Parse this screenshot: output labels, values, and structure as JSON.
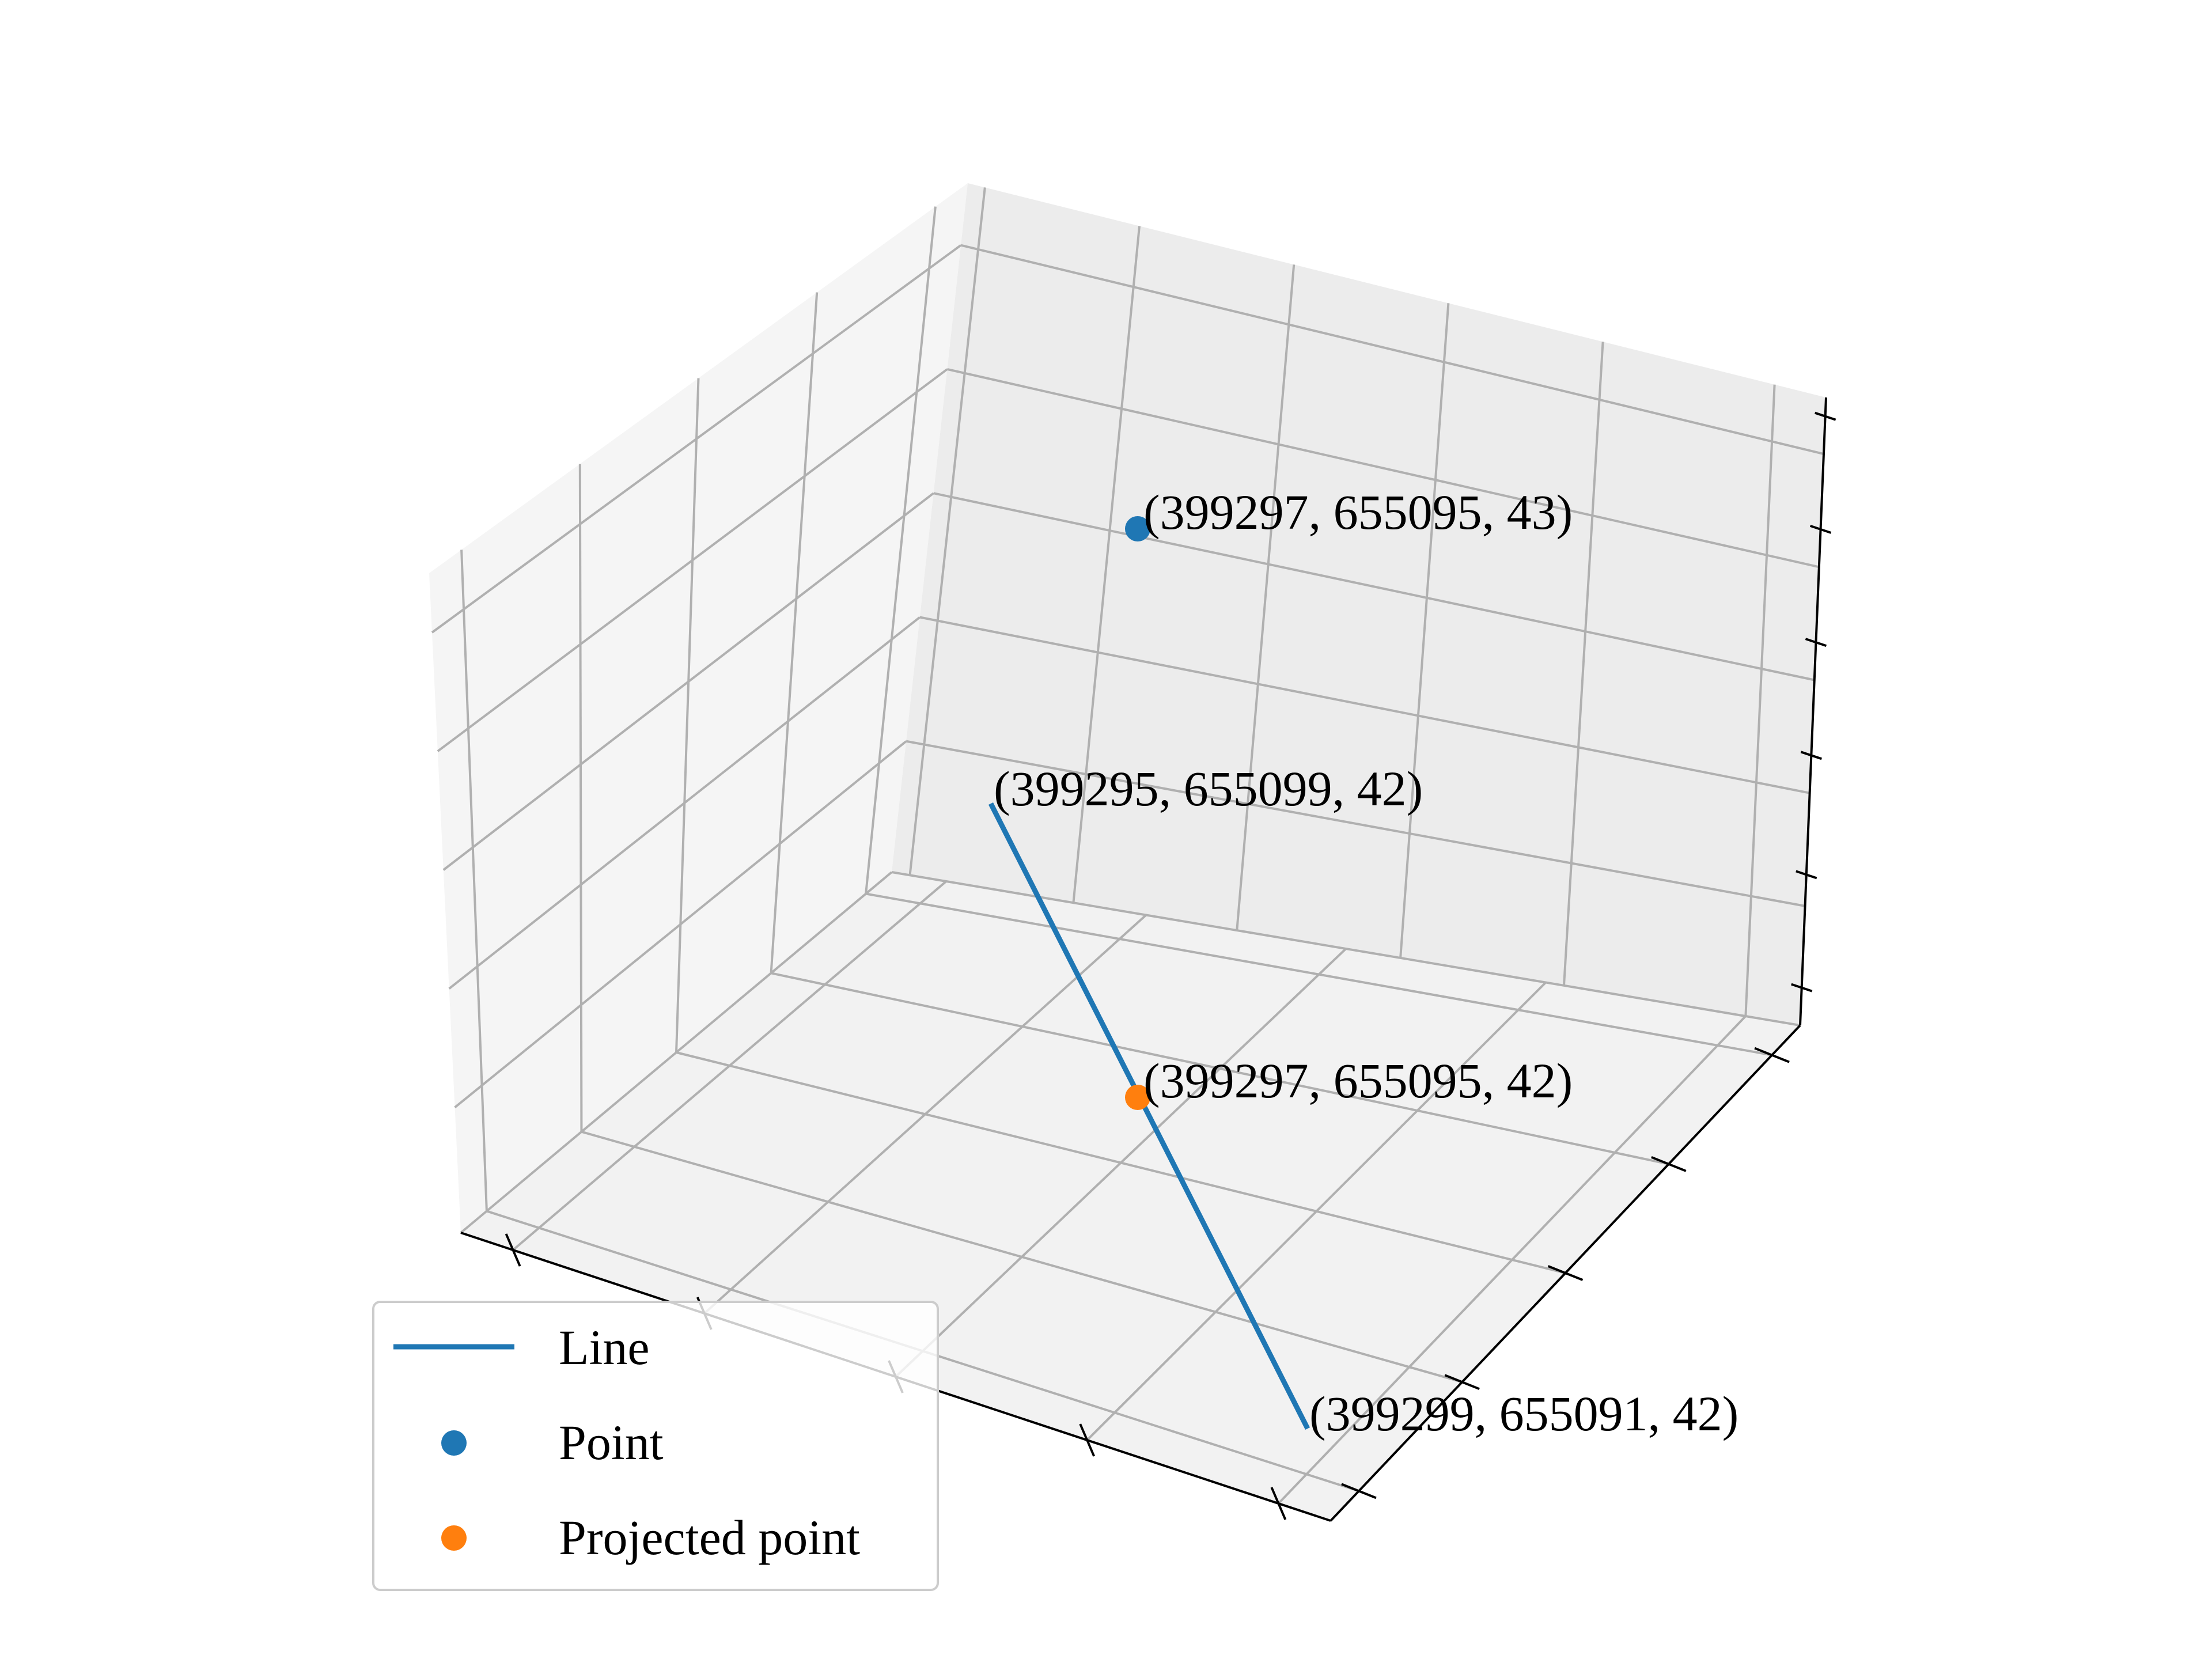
{
  "chart_data": {
    "type": "line",
    "projection": "3d",
    "grid": true,
    "legend_position": "lower-left",
    "axes": {
      "x": {
        "label": "",
        "tick_labels_shown": false
      },
      "y": {
        "label": "",
        "tick_labels_shown": false
      },
      "z": {
        "label": "",
        "tick_labels_shown": false
      }
    },
    "series": [
      {
        "name": "Line",
        "kind": "line",
        "color": "#1f77b4",
        "points": [
          {
            "x": 399295,
            "y": 655099,
            "z": 42
          },
          {
            "x": 399299,
            "y": 655091,
            "z": 42
          }
        ]
      },
      {
        "name": "Point",
        "kind": "scatter",
        "color": "#1f77b4",
        "points": [
          {
            "x": 399297,
            "y": 655095,
            "z": 43
          }
        ]
      },
      {
        "name": "Projected point",
        "kind": "scatter",
        "color": "#ff7f0e",
        "points": [
          {
            "x": 399297,
            "y": 655095,
            "z": 42
          }
        ]
      }
    ],
    "annotations": [
      {
        "id": "point",
        "text": "(399297, 655095, 43)"
      },
      {
        "id": "line-start",
        "text": "(399295, 655099, 42)"
      },
      {
        "id": "projected",
        "text": "(399297, 655095, 42)"
      },
      {
        "id": "line-end",
        "text": "(399299, 655091, 42)"
      }
    ],
    "legend": [
      "Line",
      "Point",
      "Projected point"
    ]
  }
}
